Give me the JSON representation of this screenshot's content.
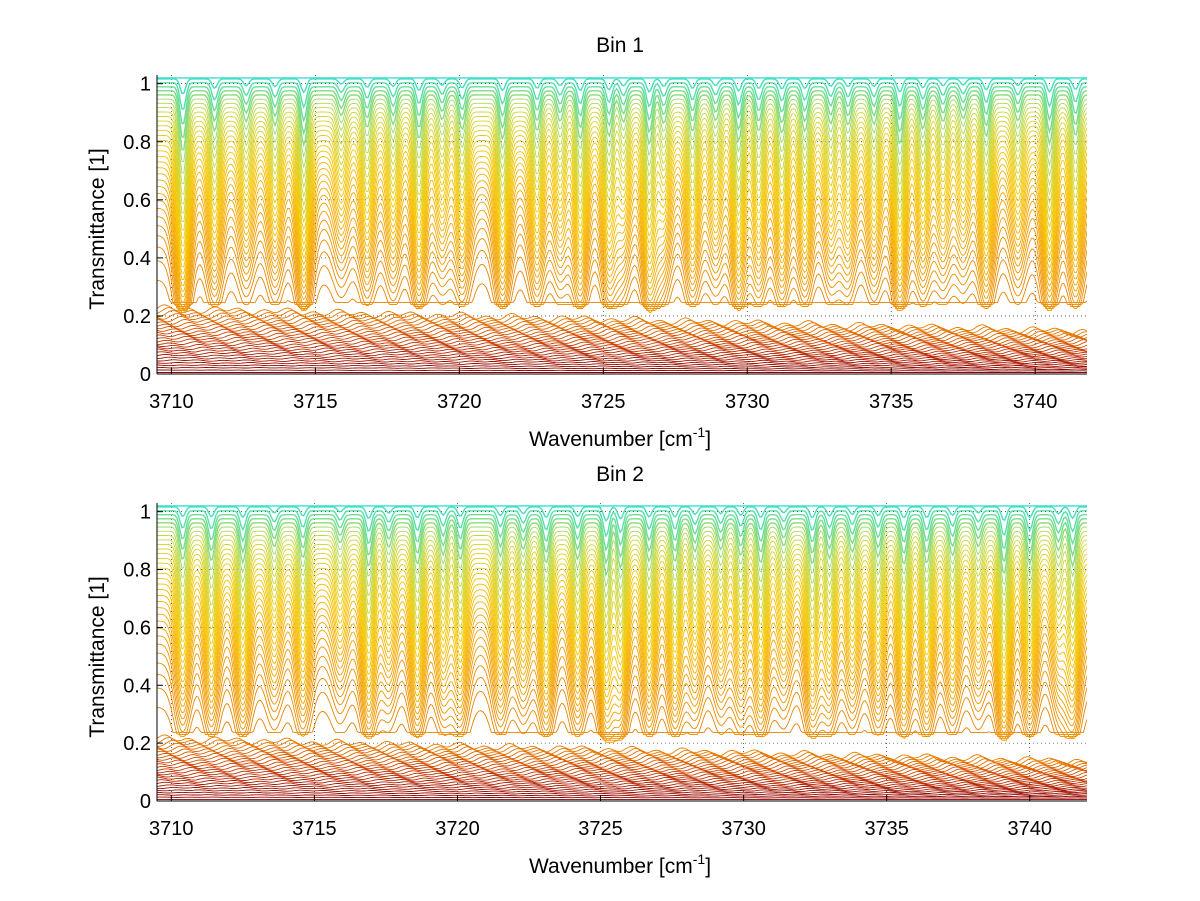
{
  "figure": {
    "background": "#ffffff",
    "colormap": [
      "#8b0000",
      "#b22000",
      "#d24a00",
      "#e67a00",
      "#f2a000",
      "#f8c600",
      "#c8d83a",
      "#35e0d0"
    ]
  },
  "chart_data": [
    {
      "type": "line",
      "title": "Bin 1",
      "xlabel": "Wavenumber [cm",
      "xlabel_sup": "-1",
      "xlabel_suffix": "]",
      "ylabel": "Transmittance [1]",
      "xlim": [
        3709.5,
        3741.8
      ],
      "ylim": [
        0,
        1.03
      ],
      "xticks": [
        3710,
        3715,
        3720,
        3725,
        3730,
        3735,
        3740
      ],
      "xtick_labels": [
        "3710",
        "3715",
        "3720",
        "3725",
        "3730",
        "3735",
        "3740"
      ],
      "yticks": [
        0,
        0.2,
        0.4,
        0.6,
        0.8,
        1
      ],
      "ytick_labels": [
        "0",
        "0.2",
        "0.4",
        "0.6",
        "0.8",
        "1"
      ],
      "grid": true,
      "grid_style": "dotted",
      "series_count": 60,
      "series_description": "stacked transmittance spectra colored from dark red (low) to cyan (high)",
      "band_center_line_positions": [
        3710.4,
        3711.5,
        3712.6,
        3713.6,
        3714.6,
        3715.9,
        3716.8,
        3717.7,
        3718.6,
        3719.4,
        3720.1,
        3721.5,
        3722.7,
        3723.5,
        3724.2,
        3725.2,
        3725.7,
        3726.6,
        3727.1,
        3728.1,
        3728.9,
        3729.7,
        3730.4,
        3731.2,
        3732.0,
        3732.9,
        3733.5,
        3734.4,
        3735.3,
        3736.1,
        3736.8,
        3737.5,
        3738.3,
        3739.4,
        3740.5,
        3741.4
      ],
      "band_center_line_depths": [
        0.75,
        0.45,
        0.55,
        0.5,
        0.65,
        0.4,
        0.55,
        0.45,
        0.65,
        0.45,
        0.7,
        0.55,
        0.6,
        0.5,
        0.7,
        0.75,
        0.55,
        0.7,
        0.5,
        0.65,
        0.55,
        0.6,
        0.7,
        0.5,
        0.6,
        0.55,
        0.45,
        0.5,
        0.7,
        0.5,
        0.55,
        0.45,
        0.7,
        0.55,
        0.6,
        0.7
      ],
      "floor_high_edge": 0.23,
      "floor_low_edge": 0.14
    },
    {
      "type": "line",
      "title": "Bin 2",
      "xlabel": "Wavenumber [cm",
      "xlabel_sup": "-1",
      "xlabel_suffix": "]",
      "ylabel": "Transmittance [1]",
      "xlim": [
        3709.5,
        3742.0
      ],
      "ylim": [
        0,
        1.03
      ],
      "xticks": [
        3710,
        3715,
        3720,
        3725,
        3730,
        3735,
        3740
      ],
      "xtick_labels": [
        "3710",
        "3715",
        "3720",
        "3725",
        "3730",
        "3735",
        "3740"
      ],
      "yticks": [
        0,
        0.2,
        0.4,
        0.6,
        0.8,
        1
      ],
      "ytick_labels": [
        "0",
        "0.2",
        "0.4",
        "0.6",
        "0.8",
        "1"
      ],
      "grid": true,
      "grid_style": "dotted",
      "series_count": 60,
      "series_description": "stacked transmittance spectra colored from dark red (low) to cyan (high)",
      "band_center_line_positions": [
        3710.4,
        3711.4,
        3712.5,
        3713.6,
        3714.6,
        3715.9,
        3716.9,
        3717.6,
        3718.6,
        3719.5,
        3720.1,
        3721.5,
        3722.3,
        3723.1,
        3724.2,
        3725.2,
        3725.7,
        3726.7,
        3727.6,
        3728.3,
        3729.2,
        3729.9,
        3730.6,
        3731.4,
        3732.4,
        3733.0,
        3733.8,
        3734.7,
        3735.6,
        3736.4,
        3737.3,
        3738.2,
        3739.1,
        3740.0,
        3741.0,
        3741.5
      ],
      "band_center_line_depths": [
        0.75,
        0.5,
        0.55,
        0.5,
        0.65,
        0.4,
        0.6,
        0.45,
        0.65,
        0.45,
        0.7,
        0.55,
        0.5,
        0.6,
        0.7,
        0.75,
        0.6,
        0.7,
        0.55,
        0.5,
        0.55,
        0.5,
        0.65,
        0.5,
        0.6,
        0.5,
        0.45,
        0.55,
        0.7,
        0.5,
        0.55,
        0.5,
        0.7,
        0.55,
        0.6,
        0.7
      ],
      "floor_high_edge": 0.22,
      "floor_low_edge": 0.15
    }
  ]
}
